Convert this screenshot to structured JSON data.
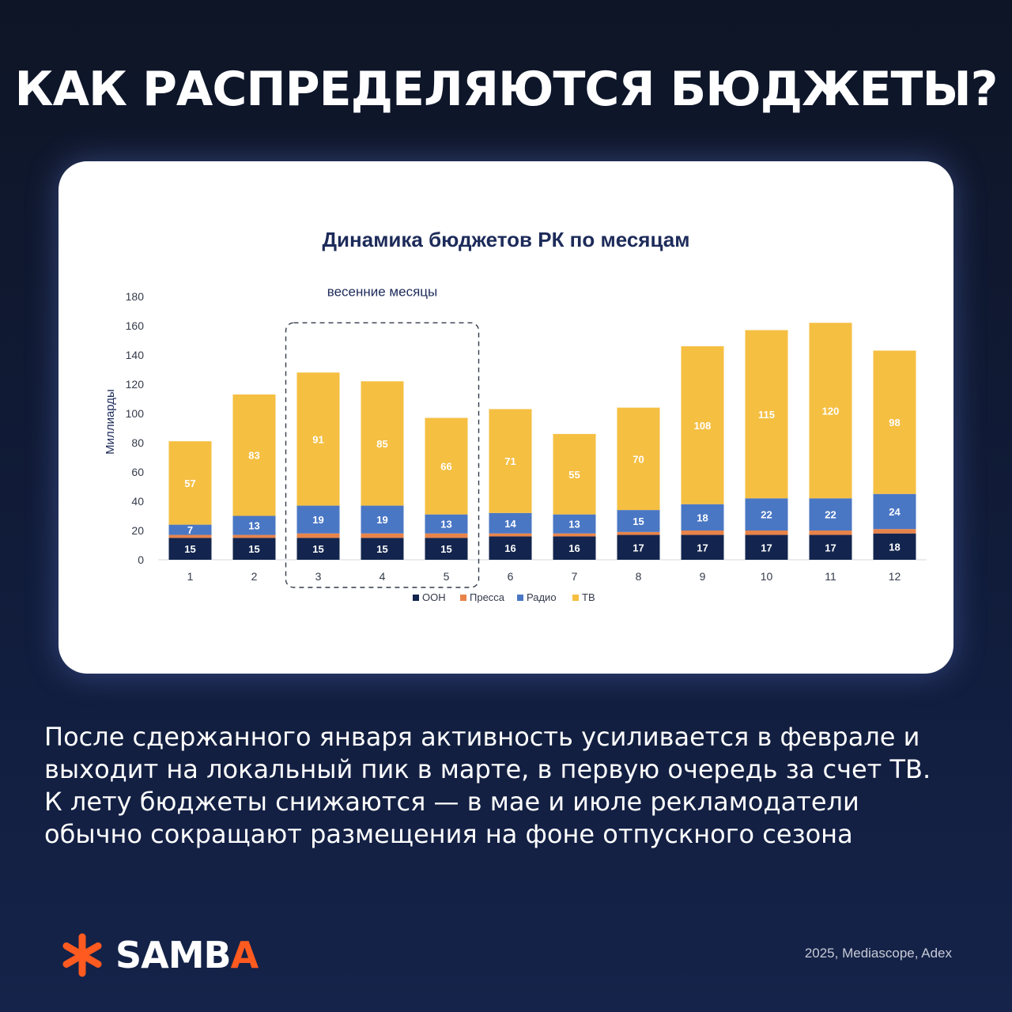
{
  "header": {
    "title": "КАК РАСПРЕДЕЛЯЮТСЯ БЮДЖЕТЫ?"
  },
  "chart_data": {
    "type": "bar",
    "stacked": true,
    "title": "Динамика бюджетов РК по месяцам",
    "xlabel": "",
    "ylabel": "Миллиарды",
    "ylim": [
      0,
      180
    ],
    "yticks": [
      0,
      20,
      40,
      60,
      80,
      100,
      120,
      140,
      160,
      180
    ],
    "categories": [
      "1",
      "2",
      "3",
      "4",
      "5",
      "6",
      "7",
      "8",
      "9",
      "10",
      "11",
      "12"
    ],
    "series": [
      {
        "name": "ООН",
        "color": "#13254e",
        "labeled": true,
        "values": [
          15,
          15,
          15,
          15,
          15,
          16,
          16,
          17,
          17,
          17,
          17,
          18
        ]
      },
      {
        "name": "Пресса",
        "color": "#e8834a",
        "labeled": false,
        "values": [
          2,
          2,
          3,
          3,
          3,
          2,
          2,
          2,
          3,
          3,
          3,
          3
        ]
      },
      {
        "name": "Радио",
        "color": "#4a77c4",
        "labeled": true,
        "values": [
          7,
          13,
          19,
          19,
          13,
          14,
          13,
          15,
          18,
          22,
          22,
          24
        ]
      },
      {
        "name": "ТВ",
        "color": "#f5bf42",
        "labeled": true,
        "values": [
          57,
          83,
          91,
          85,
          66,
          71,
          55,
          70,
          108,
          115,
          120,
          98
        ]
      }
    ],
    "annotation": {
      "text": "весенние месяцы",
      "categories": [
        "3",
        "4",
        "5"
      ]
    },
    "legend_position": "bottom",
    "grid": false
  },
  "body": {
    "lines": [
      "После сдержанного января активность усиливается в феврале и",
      "выходит на локальный пик в марте, в первую очередь за счет ТВ.",
      "К лету бюджеты снижаются — в мае и июле рекламодатели",
      "обычно сокращают размещения на фоне отпускного сезона"
    ]
  },
  "footer": {
    "logo_main": "SAMB",
    "logo_accent": "A",
    "source": "2025, Mediascope, Adex"
  },
  "colors": {
    "brand": "#ff5a1f",
    "background": "#111c3a"
  }
}
